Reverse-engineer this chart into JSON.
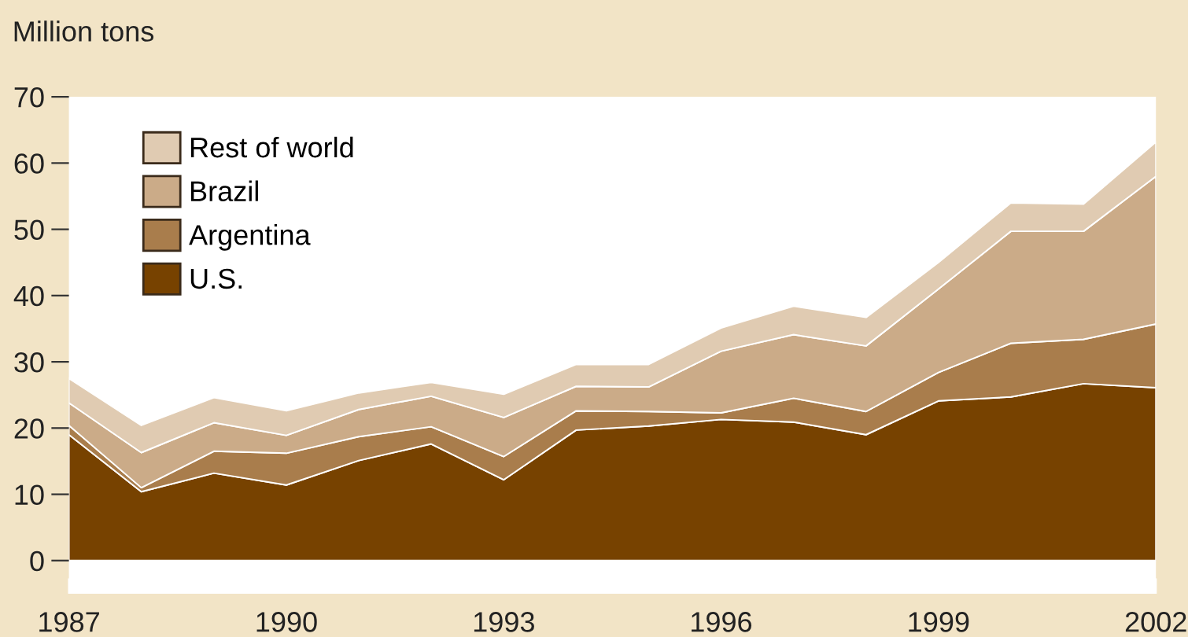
{
  "chart_data": {
    "type": "area",
    "stacked": true,
    "ylabel": "Million tons",
    "x": [
      "1987",
      "1988",
      "1989",
      "1990",
      "1991",
      "1992",
      "1993",
      "1994",
      "1995",
      "1996",
      "1997",
      "1998",
      "1999",
      "2000",
      "2001",
      "2002"
    ],
    "series": [
      {
        "name": "U.S.",
        "color": "#774200",
        "values": [
          19.0,
          10.4,
          13.2,
          11.4,
          15.1,
          17.6,
          12.2,
          19.7,
          20.3,
          21.3,
          20.9,
          19.0,
          24.1,
          24.7,
          26.7,
          26.1
        ]
      },
      {
        "name": "Argentina",
        "color": "#a97d4c",
        "values": [
          1.4,
          0.6,
          3.3,
          4.8,
          3.6,
          2.6,
          3.5,
          2.9,
          2.2,
          1.0,
          3.6,
          3.5,
          4.3,
          8.1,
          6.7,
          9.6
        ]
      },
      {
        "name": "Brazil",
        "color": "#cbab88",
        "values": [
          3.4,
          5.3,
          4.3,
          2.7,
          4.1,
          4.6,
          5.9,
          3.7,
          3.7,
          9.3,
          9.6,
          9.9,
          12.6,
          16.9,
          16.3,
          22.3
        ]
      },
      {
        "name": "Rest of world",
        "color": "#e0cbb2",
        "values": [
          3.7,
          4.1,
          3.8,
          3.7,
          2.5,
          2.1,
          3.5,
          3.3,
          3.4,
          3.5,
          4.3,
          4.3,
          4.0,
          4.3,
          4.1,
          5.2
        ]
      }
    ],
    "xlim": [
      "1987",
      "2002"
    ],
    "xticks": [
      {
        "value": "1987",
        "label": "1987"
      },
      {
        "value": "1990",
        "label": "1990"
      },
      {
        "value": "1993",
        "label": "1993"
      },
      {
        "value": "1996",
        "label": "1996"
      },
      {
        "value": "1999",
        "label": "1999"
      },
      {
        "value": "2002",
        "label": "2002"
      }
    ],
    "ylim": [
      -5,
      70
    ],
    "yticks": [
      0,
      10,
      20,
      30,
      40,
      50,
      60,
      70
    ],
    "legend": "top left",
    "grid": false
  }
}
